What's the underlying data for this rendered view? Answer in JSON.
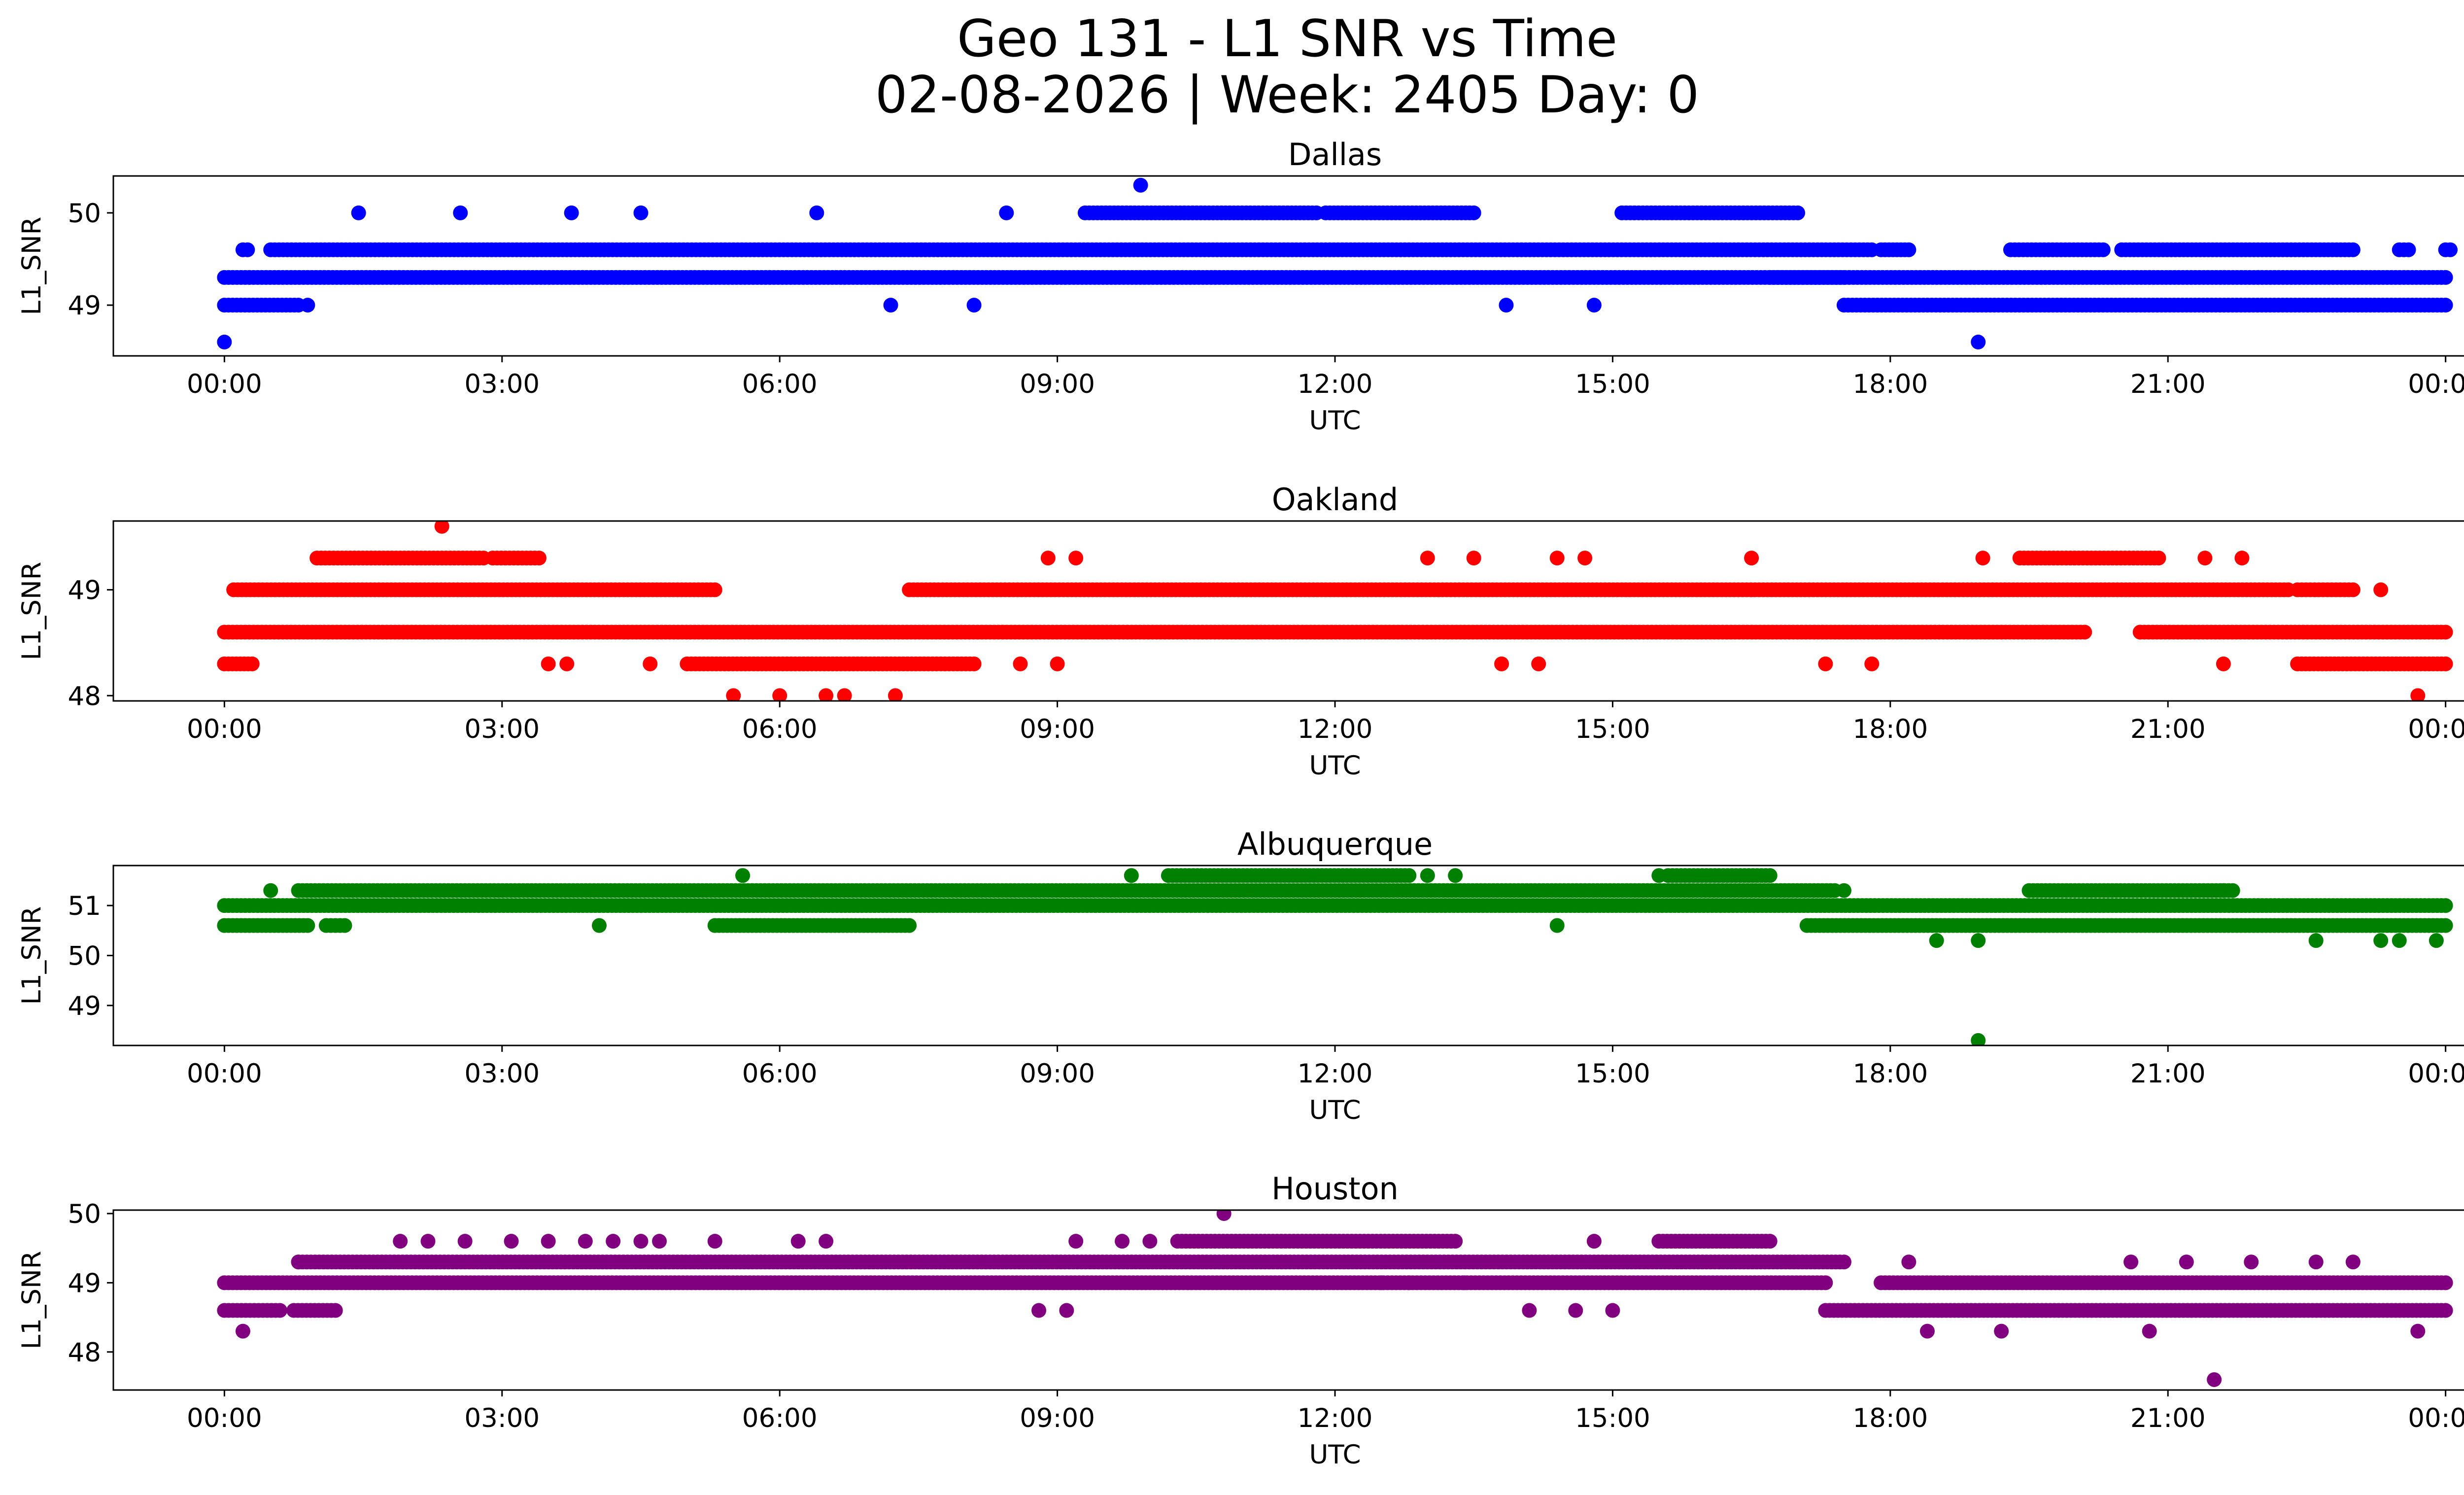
{
  "figure": {
    "title_line1": "Geo 131 - L1 SNR vs Time",
    "title_line2": "02-08-2026 | Week: 2405 Day: 0"
  },
  "chart_data": [
    {
      "type": "scatter",
      "title": "Dallas",
      "xlabel": "UTC",
      "ylabel": "L1_SNR",
      "color": "#0000ff",
      "xlim": [
        -1.2,
        25.2
      ],
      "ylim": [
        48.45,
        50.4
      ],
      "yticks": [
        49,
        50
      ],
      "xticks": [
        0,
        3,
        6,
        9,
        12,
        15,
        18,
        21,
        24
      ],
      "xtick_labels": [
        "00:00",
        "03:00",
        "06:00",
        "09:00",
        "12:00",
        "15:00",
        "18:00",
        "21:00",
        "00:00"
      ],
      "bands": [
        {
          "y": 49.6,
          "segments": [
            [
              0.2,
              0.25
            ],
            [
              0.5,
              17.8
            ],
            [
              17.9,
              18.2
            ],
            [
              19.3,
              20.3
            ],
            [
              20.5,
              23.0
            ],
            [
              23.5,
              23.6
            ],
            [
              24.0,
              24.05
            ]
          ]
        },
        {
          "y": 49.3,
          "segments": [
            [
              0.0,
              17.5
            ],
            [
              16.7,
              24.0
            ]
          ]
        },
        {
          "y": 49.0,
          "segments": [
            [
              0.0,
              0.8
            ],
            [
              17.5,
              24.0
            ]
          ]
        },
        {
          "y": 50.0,
          "segments": [
            [
              9.3,
              11.8
            ],
            [
              11.9,
              13.5
            ],
            [
              15.1,
              17.0
            ]
          ]
        }
      ],
      "points": [
        [
          0.0,
          48.6
        ],
        [
          1.45,
          50.0
        ],
        [
          2.55,
          50.0
        ],
        [
          3.75,
          50.0
        ],
        [
          4.5,
          50.0
        ],
        [
          6.4,
          50.0
        ],
        [
          8.45,
          50.0
        ],
        [
          9.9,
          50.3
        ],
        [
          0.9,
          49.0
        ],
        [
          7.2,
          49.0
        ],
        [
          8.1,
          49.0
        ],
        [
          13.85,
          49.0
        ],
        [
          14.8,
          49.0
        ],
        [
          18.95,
          48.6
        ]
      ]
    },
    {
      "type": "scatter",
      "title": "Oakland",
      "xlabel": "UTC",
      "ylabel": "L1_SNR",
      "color": "#ff0000",
      "xlim": [
        -1.2,
        25.2
      ],
      "ylim": [
        47.95,
        49.65
      ],
      "yticks": [
        48,
        49
      ],
      "xticks": [
        0,
        3,
        6,
        9,
        12,
        15,
        18,
        21,
        24
      ],
      "xtick_labels": [
        "00:00",
        "03:00",
        "06:00",
        "09:00",
        "12:00",
        "15:00",
        "18:00",
        "21:00",
        "00:00"
      ],
      "bands": [
        {
          "y": 48.6,
          "segments": [
            [
              0.0,
              20.1
            ],
            [
              20.7,
              24.0
            ]
          ]
        },
        {
          "y": 49.0,
          "segments": [
            [
              0.1,
              5.3
            ],
            [
              7.4,
              22.3
            ],
            [
              22.4,
              23.0
            ]
          ]
        },
        {
          "y": 48.3,
          "segments": [
            [
              0.0,
              0.3
            ],
            [
              5.0,
              8.1
            ],
            [
              22.4,
              24.0
            ]
          ]
        },
        {
          "y": 49.3,
          "segments": [
            [
              1.0,
              2.8
            ],
            [
              2.9,
              3.4
            ],
            [
              19.4,
              20.9
            ]
          ]
        }
      ],
      "points": [
        [
          2.35,
          49.6
        ],
        [
          5.5,
          48.0
        ],
        [
          6.0,
          48.0
        ],
        [
          6.5,
          48.0
        ],
        [
          6.7,
          48.0
        ],
        [
          7.25,
          48.0
        ],
        [
          23.7,
          48.0
        ],
        [
          3.5,
          48.3
        ],
        [
          3.7,
          48.3
        ],
        [
          4.6,
          48.3
        ],
        [
          8.6,
          48.3
        ],
        [
          9.0,
          48.3
        ],
        [
          13.8,
          48.3
        ],
        [
          14.2,
          48.3
        ],
        [
          17.3,
          48.3
        ],
        [
          17.8,
          48.3
        ],
        [
          21.6,
          48.3
        ],
        [
          8.9,
          49.3
        ],
        [
          9.2,
          49.3
        ],
        [
          13.0,
          49.3
        ],
        [
          13.5,
          49.3
        ],
        [
          14.4,
          49.3
        ],
        [
          14.7,
          49.3
        ],
        [
          16.5,
          49.3
        ],
        [
          19.0,
          49.3
        ],
        [
          21.4,
          49.3
        ],
        [
          21.8,
          49.3
        ],
        [
          23.3,
          49.0
        ],
        [
          20.7,
          48.6
        ]
      ]
    },
    {
      "type": "scatter",
      "title": "Albuquerque",
      "xlabel": "UTC",
      "ylabel": "L1_SNR",
      "color": "#008000",
      "xlim": [
        -1.2,
        25.2
      ],
      "ylim": [
        48.2,
        51.8
      ],
      "yticks": [
        49,
        50,
        51
      ],
      "xticks": [
        0,
        3,
        6,
        9,
        12,
        15,
        18,
        21,
        24
      ],
      "xtick_labels": [
        "00:00",
        "03:00",
        "06:00",
        "09:00",
        "12:00",
        "15:00",
        "18:00",
        "21:00",
        "00:00"
      ],
      "bands": [
        {
          "y": 51.0,
          "segments": [
            [
              0.0,
              24.0
            ]
          ]
        },
        {
          "y": 51.3,
          "segments": [
            [
              0.8,
              17.4
            ],
            [
              19.5,
              21.7
            ]
          ]
        },
        {
          "y": 50.6,
          "segments": [
            [
              0.0,
              0.9
            ],
            [
              1.1,
              1.3
            ],
            [
              5.3,
              7.4
            ],
            [
              17.1,
              24.0
            ]
          ]
        },
        {
          "y": 51.6,
          "segments": [
            [
              10.2,
              12.8
            ],
            [
              15.6,
              16.7
            ]
          ]
        }
      ],
      "points": [
        [
          0.5,
          51.3
        ],
        [
          5.6,
          51.6
        ],
        [
          9.8,
          51.6
        ],
        [
          13.0,
          51.6
        ],
        [
          13.3,
          51.6
        ],
        [
          15.5,
          51.6
        ],
        [
          4.05,
          50.6
        ],
        [
          14.4,
          50.6
        ],
        [
          18.5,
          50.3
        ],
        [
          18.95,
          50.3
        ],
        [
          18.95,
          48.3
        ],
        [
          22.6,
          50.3
        ],
        [
          23.3,
          50.3
        ],
        [
          23.5,
          50.3
        ],
        [
          23.9,
          50.3
        ],
        [
          17.5,
          51.3
        ],
        [
          21.6,
          51.3
        ]
      ]
    },
    {
      "type": "scatter",
      "title": "Houston",
      "xlabel": "UTC",
      "ylabel": "L1_SNR",
      "color": "#800080",
      "xlim": [
        -1.2,
        25.2
      ],
      "ylim": [
        47.45,
        50.05
      ],
      "yticks": [
        48,
        49,
        50
      ],
      "xticks": [
        0,
        3,
        6,
        9,
        12,
        15,
        18,
        21,
        24
      ],
      "xtick_labels": [
        "00:00",
        "03:00",
        "06:00",
        "09:00",
        "12:00",
        "15:00",
        "18:00",
        "21:00",
        "00:00"
      ],
      "bands": [
        {
          "y": 49.0,
          "segments": [
            [
              0.0,
              17.3
            ],
            [
              17.9,
              24.0
            ]
          ]
        },
        {
          "y": 49.3,
          "segments": [
            [
              0.8,
              17.5
            ]
          ]
        },
        {
          "y": 48.6,
          "segments": [
            [
              0.0,
              0.6
            ],
            [
              0.75,
              1.2
            ],
            [
              17.3,
              24.0
            ]
          ]
        },
        {
          "y": 49.6,
          "segments": [
            [
              10.3,
              13.3
            ],
            [
              15.5,
              16.7
            ]
          ]
        }
      ],
      "points": [
        [
          0.2,
          48.3
        ],
        [
          0.8,
          49.3
        ],
        [
          10.8,
          50.0
        ],
        [
          1.9,
          49.6
        ],
        [
          2.2,
          49.6
        ],
        [
          2.6,
          49.6
        ],
        [
          3.1,
          49.6
        ],
        [
          3.5,
          49.6
        ],
        [
          3.9,
          49.6
        ],
        [
          4.2,
          49.6
        ],
        [
          4.5,
          49.6
        ],
        [
          4.7,
          49.6
        ],
        [
          5.3,
          49.6
        ],
        [
          6.2,
          49.6
        ],
        [
          6.5,
          49.6
        ],
        [
          9.2,
          49.6
        ],
        [
          9.7,
          49.6
        ],
        [
          10.0,
          49.6
        ],
        [
          14.8,
          49.6
        ],
        [
          8.8,
          48.6
        ],
        [
          9.1,
          48.6
        ],
        [
          14.1,
          48.6
        ],
        [
          14.6,
          48.6
        ],
        [
          15.0,
          48.6
        ],
        [
          18.4,
          48.3
        ],
        [
          19.2,
          48.3
        ],
        [
          20.8,
          48.3
        ],
        [
          23.7,
          48.3
        ],
        [
          21.5,
          47.6
        ],
        [
          18.2,
          49.3
        ],
        [
          20.6,
          49.3
        ],
        [
          21.2,
          49.3
        ],
        [
          21.9,
          49.3
        ],
        [
          22.6,
          49.3
        ],
        [
          23.0,
          49.3
        ],
        [
          12.5,
          49.0
        ],
        [
          12.8,
          49.0
        ],
        [
          13.4,
          49.0
        ]
      ]
    }
  ]
}
